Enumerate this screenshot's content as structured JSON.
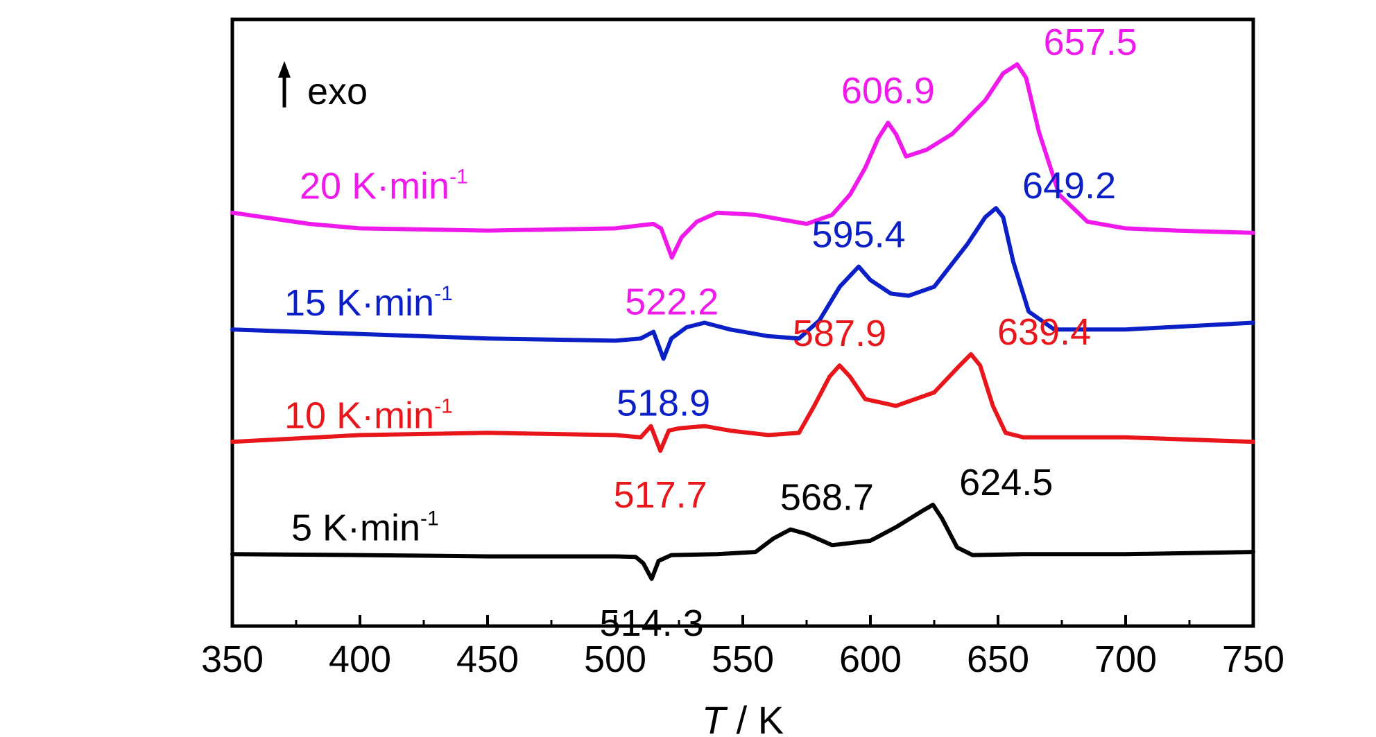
{
  "chart_data": {
    "type": "line",
    "xlabel_var": "T",
    "xlabel_unit": " / K",
    "ylabel": "",
    "xlim": [
      350,
      750
    ],
    "x_ticks": [
      350,
      400,
      450,
      500,
      550,
      600,
      650,
      700,
      750
    ],
    "exo_label": "exo",
    "series": [
      {
        "name": "5 K·min",
        "superscript": "-1",
        "color": "#000000",
        "points": [
          [
            350,
            1.6
          ],
          [
            400,
            1.58
          ],
          [
            450,
            1.55
          ],
          [
            500,
            1.55
          ],
          [
            508,
            1.54
          ],
          [
            511,
            1.4
          ],
          [
            514.3,
            1.05
          ],
          [
            517,
            1.45
          ],
          [
            522,
            1.58
          ],
          [
            540,
            1.6
          ],
          [
            555,
            1.65
          ],
          [
            562,
            1.95
          ],
          [
            568.7,
            2.15
          ],
          [
            575,
            2.05
          ],
          [
            585,
            1.8
          ],
          [
            600,
            1.9
          ],
          [
            610,
            2.2
          ],
          [
            620,
            2.55
          ],
          [
            624.5,
            2.7
          ],
          [
            628,
            2.4
          ],
          [
            634,
            1.75
          ],
          [
            640,
            1.58
          ],
          [
            660,
            1.6
          ],
          [
            700,
            1.6
          ],
          [
            750,
            1.65
          ]
        ]
      },
      {
        "name": "10 K·min",
        "superscript": "-1",
        "color": "#e8161b",
        "points": [
          [
            350,
            4.1
          ],
          [
            400,
            4.25
          ],
          [
            450,
            4.3
          ],
          [
            500,
            4.25
          ],
          [
            510,
            4.2
          ],
          [
            514,
            4.45
          ],
          [
            517.7,
            3.9
          ],
          [
            521,
            4.35
          ],
          [
            525,
            4.4
          ],
          [
            535,
            4.45
          ],
          [
            545,
            4.35
          ],
          [
            560,
            4.25
          ],
          [
            572,
            4.3
          ],
          [
            578,
            4.9
          ],
          [
            584,
            5.55
          ],
          [
            587.9,
            5.8
          ],
          [
            592,
            5.55
          ],
          [
            598,
            5.05
          ],
          [
            610,
            4.9
          ],
          [
            625,
            5.2
          ],
          [
            635,
            5.8
          ],
          [
            639.4,
            6.05
          ],
          [
            643,
            5.8
          ],
          [
            648,
            4.9
          ],
          [
            653,
            4.3
          ],
          [
            660,
            4.2
          ],
          [
            700,
            4.2
          ],
          [
            750,
            4.1
          ]
        ]
      },
      {
        "name": "15 K·min",
        "superscript": "-1",
        "color": "#0a1fc6",
        "points": [
          [
            350,
            6.6
          ],
          [
            400,
            6.5
          ],
          [
            450,
            6.4
          ],
          [
            500,
            6.35
          ],
          [
            510,
            6.4
          ],
          [
            515,
            6.55
          ],
          [
            518.9,
            5.95
          ],
          [
            522,
            6.4
          ],
          [
            528,
            6.65
          ],
          [
            535,
            6.75
          ],
          [
            545,
            6.6
          ],
          [
            560,
            6.45
          ],
          [
            572,
            6.4
          ],
          [
            580,
            6.8
          ],
          [
            588,
            7.55
          ],
          [
            595.4,
            8.0
          ],
          [
            600,
            7.7
          ],
          [
            608,
            7.4
          ],
          [
            615,
            7.35
          ],
          [
            625,
            7.55
          ],
          [
            638,
            8.5
          ],
          [
            645,
            9.1
          ],
          [
            649.2,
            9.3
          ],
          [
            652,
            9.1
          ],
          [
            656,
            8.1
          ],
          [
            662,
            7.0
          ],
          [
            672,
            6.6
          ],
          [
            700,
            6.6
          ],
          [
            750,
            6.75
          ]
        ]
      },
      {
        "name": "20 K·min",
        "superscript": "-1",
        "color": "#f019ec",
        "points": [
          [
            350,
            9.2
          ],
          [
            380,
            8.95
          ],
          [
            400,
            8.85
          ],
          [
            450,
            8.8
          ],
          [
            500,
            8.85
          ],
          [
            515,
            8.95
          ],
          [
            518,
            8.85
          ],
          [
            522.2,
            8.2
          ],
          [
            526,
            8.65
          ],
          [
            532,
            9.0
          ],
          [
            540,
            9.2
          ],
          [
            555,
            9.15
          ],
          [
            565,
            9.05
          ],
          [
            575,
            8.95
          ],
          [
            585,
            9.15
          ],
          [
            592,
            9.6
          ],
          [
            598,
            10.2
          ],
          [
            603,
            10.85
          ],
          [
            606.9,
            11.2
          ],
          [
            610,
            10.95
          ],
          [
            614,
            10.45
          ],
          [
            622,
            10.6
          ],
          [
            632,
            10.95
          ],
          [
            645,
            11.7
          ],
          [
            652,
            12.3
          ],
          [
            657.5,
            12.5
          ],
          [
            661,
            12.2
          ],
          [
            666,
            11.0
          ],
          [
            674,
            9.6
          ],
          [
            685,
            9.0
          ],
          [
            700,
            8.85
          ],
          [
            720,
            8.8
          ],
          [
            750,
            8.75
          ]
        ]
      }
    ],
    "annotations": [
      {
        "text": "514. 3",
        "color": "#000000",
        "x": 514.3,
        "y": 1.05,
        "pos": "below"
      },
      {
        "text": "568.7",
        "color": "#000000",
        "x": 568.7,
        "y": 2.15,
        "pos": "above-right"
      },
      {
        "text": "624.5",
        "color": "#000000",
        "x": 624.5,
        "y": 2.7,
        "pos": "right"
      },
      {
        "text": "517.7",
        "color": "#e8161b",
        "x": 517.7,
        "y": 3.9,
        "pos": "below"
      },
      {
        "text": "587.9",
        "color": "#e8161b",
        "x": 587.9,
        "y": 5.8,
        "pos": "above"
      },
      {
        "text": "639.4",
        "color": "#e8161b",
        "x": 639.4,
        "y": 6.05,
        "pos": "right"
      },
      {
        "text": "518.9",
        "color": "#0a1fc6",
        "x": 518.9,
        "y": 5.95,
        "pos": "below"
      },
      {
        "text": "595.4",
        "color": "#0a1fc6",
        "x": 595.4,
        "y": 8.0,
        "pos": "above"
      },
      {
        "text": "649.2",
        "color": "#0a1fc6",
        "x": 649.2,
        "y": 9.3,
        "pos": "right"
      },
      {
        "text": "522.2",
        "color": "#f019ec",
        "x": 522.2,
        "y": 8.2,
        "pos": "below"
      },
      {
        "text": "606.9",
        "color": "#f019ec",
        "x": 606.9,
        "y": 11.2,
        "pos": "above"
      },
      {
        "text": "657.5",
        "color": "#f019ec",
        "x": 657.5,
        "y": 12.5,
        "pos": "right"
      }
    ]
  }
}
